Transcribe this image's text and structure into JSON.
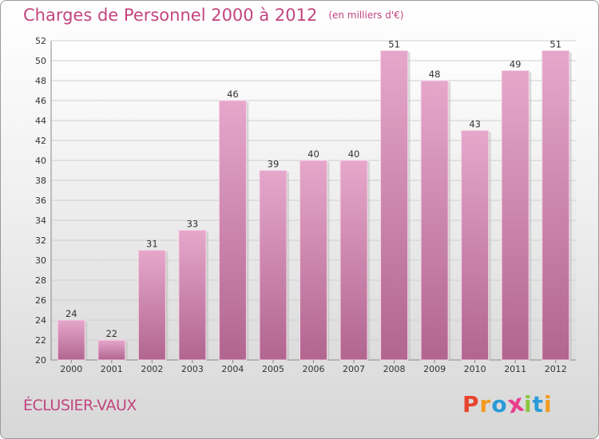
{
  "chart_data": {
    "type": "bar",
    "title": "Charges de Personnel 2000 à 2012",
    "subtitle": "(en milliers d'€)",
    "xlabel": "",
    "ylabel": "",
    "categories": [
      "2000",
      "2001",
      "2002",
      "2003",
      "2004",
      "2005",
      "2006",
      "2007",
      "2008",
      "2009",
      "2010",
      "2011",
      "2012"
    ],
    "values": [
      24,
      22,
      31,
      33,
      46,
      39,
      40,
      40,
      51,
      48,
      43,
      49,
      51
    ],
    "ylim": [
      20,
      52
    ],
    "yticks": [
      20,
      22,
      24,
      26,
      28,
      30,
      32,
      34,
      36,
      38,
      40,
      42,
      44,
      46,
      48,
      50,
      52
    ],
    "grid": true,
    "bar_color": "#d98ab6"
  },
  "footer": {
    "commune": "ÉCLUSIER-VAUX"
  },
  "logo": {
    "letters": [
      "P",
      "r",
      "o",
      "x",
      "i",
      "t",
      "i"
    ],
    "colors": [
      "#e8452e",
      "#f39a1e",
      "#2a9bd6",
      "#e83f8e",
      "#8cc63f",
      "#2a9bd6",
      "#f39a1e"
    ]
  }
}
